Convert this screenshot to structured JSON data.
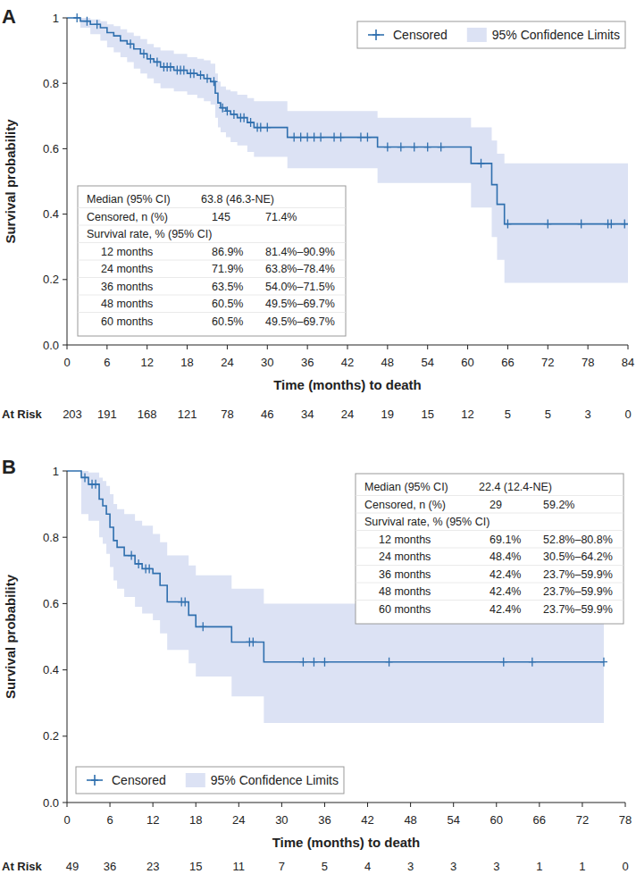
{
  "chart_data": [
    {
      "type": "step",
      "title": "A",
      "x_label": "Time (months) to death",
      "y_label": "Survival probability",
      "xlim": [
        0,
        84
      ],
      "xticks": [
        0,
        6,
        12,
        18,
        24,
        30,
        36,
        42,
        48,
        54,
        60,
        66,
        72,
        78,
        84
      ],
      "ylim": [
        0,
        1
      ],
      "yticks": [
        {
          "value": 0,
          "label": "0.0"
        },
        0.2,
        0.4,
        0.6,
        0.8,
        1
      ],
      "grid": false,
      "legend": "upper right",
      "series": [
        {
          "type": "band",
          "name": "95% Confidence Limits",
          "color": "#dce2f4",
          "x": [
            0,
            2,
            3.5,
            5,
            6,
            7,
            8,
            9,
            10,
            11,
            12,
            13,
            14,
            16,
            18,
            19.5,
            20.5,
            21.5,
            22.2,
            22.6,
            23,
            23.8,
            24.5,
            25.5,
            27,
            28,
            33,
            46.5,
            60.5,
            63.6,
            64.4,
            65.5,
            84
          ],
          "lower": [
            1,
            0.97,
            0.95,
            0.93,
            0.91,
            0.895,
            0.88,
            0.865,
            0.845,
            0.83,
            0.815,
            0.8,
            0.785,
            0.775,
            0.765,
            0.755,
            0.745,
            0.735,
            0.695,
            0.665,
            0.65,
            0.635,
            0.62,
            0.61,
            0.59,
            0.575,
            0.54,
            0.495,
            0.42,
            0.33,
            0.26,
            0.19,
            0.19
          ],
          "upper": [
            1,
            1,
            0.995,
            0.99,
            0.98,
            0.975,
            0.965,
            0.955,
            0.945,
            0.935,
            0.92,
            0.91,
            0.9,
            0.89,
            0.88,
            0.875,
            0.87,
            0.86,
            0.83,
            0.805,
            0.79,
            0.78,
            0.775,
            0.765,
            0.755,
            0.745,
            0.715,
            0.695,
            0.665,
            0.625,
            0.585,
            0.555,
            0.555
          ]
        },
        {
          "type": "step",
          "color": "#2f6fae",
          "x": [
            0,
            2,
            3.5,
            5,
            6,
            7,
            8,
            9,
            10,
            11,
            12,
            13,
            14,
            16,
            18,
            19.5,
            20.5,
            21.5,
            22.2,
            22.6,
            23,
            23.8,
            24.5,
            25.5,
            27,
            28,
            33,
            46.5,
            60.5,
            63.6,
            64.4,
            65.5,
            84
          ],
          "values": [
            1,
            0.99,
            0.98,
            0.97,
            0.955,
            0.945,
            0.93,
            0.92,
            0.905,
            0.89,
            0.875,
            0.865,
            0.85,
            0.84,
            0.83,
            0.825,
            0.815,
            0.805,
            0.77,
            0.74,
            0.725,
            0.715,
            0.705,
            0.695,
            0.68,
            0.665,
            0.635,
            0.605,
            0.555,
            0.49,
            0.43,
            0.37,
            0.37
          ]
        },
        {
          "type": "scatter",
          "name": "Censored",
          "marker": "plus",
          "color": "#2f6fae",
          "x": [
            1.5,
            3,
            4.5,
            9.5,
            11.5,
            12.5,
            13.5,
            14.5,
            15,
            15.5,
            16.5,
            17,
            17.5,
            18.5,
            19,
            20,
            21,
            22,
            23.3,
            24,
            25,
            26,
            26.5,
            27.5,
            28.5,
            29,
            30,
            34,
            35,
            36,
            37,
            38,
            40,
            41,
            44,
            45,
            48,
            50,
            52,
            54,
            56,
            62,
            66,
            72,
            77,
            81,
            81.5,
            83.5
          ],
          "values": [
            1,
            0.99,
            0.98,
            0.92,
            0.89,
            0.875,
            0.865,
            0.85,
            0.85,
            0.85,
            0.84,
            0.84,
            0.84,
            0.83,
            0.83,
            0.825,
            0.815,
            0.805,
            0.725,
            0.715,
            0.705,
            0.695,
            0.695,
            0.68,
            0.665,
            0.665,
            0.665,
            0.635,
            0.635,
            0.635,
            0.635,
            0.635,
            0.635,
            0.635,
            0.635,
            0.635,
            0.605,
            0.605,
            0.605,
            0.605,
            0.605,
            0.555,
            0.37,
            0.37,
            0.37,
            0.37,
            0.37,
            0.37
          ]
        }
      ],
      "table": {
        "rows": [
          [
            "Median (95% CI)",
            "63.8 (46.3-NE)"
          ],
          [
            "Censored, n (%)",
            "145",
            "71.4%"
          ],
          [
            "Survival rate, % (95% CI)"
          ],
          [
            "12 months",
            "86.9%",
            "81.4%–90.9%"
          ],
          [
            "24 months",
            "71.9%",
            "63.8%–78.4%"
          ],
          [
            "36 months",
            "63.5%",
            "54.0%–71.5%"
          ],
          [
            "48 months",
            "60.5%",
            "49.5%–69.7%"
          ],
          [
            "60 months",
            "60.5%",
            "49.5%–69.7%"
          ]
        ]
      },
      "at_risk": {
        "label": "At Risk",
        "x": [
          0,
          6,
          12,
          18,
          24,
          30,
          36,
          42,
          48,
          54,
          60,
          66,
          72,
          78,
          84
        ],
        "values": [
          203,
          191,
          168,
          121,
          78,
          46,
          34,
          24,
          19,
          15,
          12,
          5,
          5,
          3,
          0
        ]
      }
    },
    {
      "type": "step",
      "title": "B",
      "x_label": "Time (months) to death",
      "y_label": "Survival probability",
      "xlim": [
        0,
        78
      ],
      "xticks": [
        0,
        6,
        12,
        18,
        24,
        30,
        36,
        42,
        48,
        54,
        60,
        66,
        72,
        78
      ],
      "ylim": [
        0,
        1
      ],
      "yticks": [
        {
          "value": 0,
          "label": "0.0"
        },
        0.2,
        0.4,
        0.6,
        0.8,
        1
      ],
      "grid": false,
      "legend": "lower left",
      "series": [
        {
          "type": "band",
          "name": "95% Confidence Limits",
          "color": "#dce2f4",
          "x": [
            0,
            2,
            3,
            4.5,
            5,
            5.5,
            6,
            6.5,
            7,
            8,
            9.5,
            10.5,
            12,
            13,
            14,
            17,
            18,
            23,
            27.5,
            75
          ],
          "lower": [
            1,
            0.87,
            0.85,
            0.8,
            0.78,
            0.75,
            0.71,
            0.67,
            0.645,
            0.62,
            0.59,
            0.57,
            0.55,
            0.51,
            0.46,
            0.42,
            0.38,
            0.32,
            0.24,
            0.24
          ],
          "upper": [
            1,
            1,
            0.995,
            0.98,
            0.97,
            0.955,
            0.93,
            0.9,
            0.885,
            0.87,
            0.85,
            0.835,
            0.81,
            0.785,
            0.745,
            0.715,
            0.685,
            0.645,
            0.6,
            0.6
          ]
        },
        {
          "type": "step",
          "color": "#2f6fae",
          "x": [
            0,
            2,
            3,
            4.5,
            5,
            5.5,
            6,
            6.5,
            7,
            8,
            9.5,
            10.5,
            12,
            13,
            14,
            17,
            18,
            23,
            27.5,
            75
          ],
          "values": [
            1,
            0.98,
            0.96,
            0.915,
            0.895,
            0.87,
            0.83,
            0.79,
            0.77,
            0.745,
            0.72,
            0.705,
            0.691,
            0.655,
            0.605,
            0.565,
            0.53,
            0.484,
            0.424,
            0.424
          ]
        },
        {
          "type": "scatter",
          "name": "Censored",
          "marker": "plus",
          "color": "#2f6fae",
          "x": [
            2.5,
            3.5,
            4,
            9,
            10,
            11,
            11.5,
            16,
            16.5,
            19,
            25.5,
            26,
            33,
            34.5,
            36,
            45,
            61,
            65,
            75
          ],
          "values": [
            0.98,
            0.96,
            0.96,
            0.745,
            0.72,
            0.705,
            0.705,
            0.605,
            0.605,
            0.53,
            0.484,
            0.484,
            0.424,
            0.424,
            0.424,
            0.424,
            0.424,
            0.424,
            0.424
          ]
        }
      ],
      "table": {
        "rows": [
          [
            "Median (95% CI)",
            "22.4 (12.4-NE)"
          ],
          [
            "Censored, n (%)",
            "29",
            "59.2%"
          ],
          [
            "Survival rate, % (95% CI)"
          ],
          [
            "12 months",
            "69.1%",
            "52.8%–80.8%"
          ],
          [
            "24 months",
            "48.4%",
            "30.5%–64.2%"
          ],
          [
            "36 months",
            "42.4%",
            "23.7%–59.9%"
          ],
          [
            "48 months",
            "42.4%",
            "23.7%–59.9%"
          ],
          [
            "60 months",
            "42.4%",
            "23.7%–59.9%"
          ]
        ]
      },
      "at_risk": {
        "label": "At Risk",
        "x": [
          0,
          6,
          12,
          18,
          24,
          30,
          36,
          42,
          48,
          54,
          60,
          66,
          72,
          78
        ],
        "values": [
          49,
          36,
          23,
          15,
          11,
          7,
          5,
          4,
          3,
          3,
          3,
          1,
          1,
          0
        ]
      }
    }
  ]
}
